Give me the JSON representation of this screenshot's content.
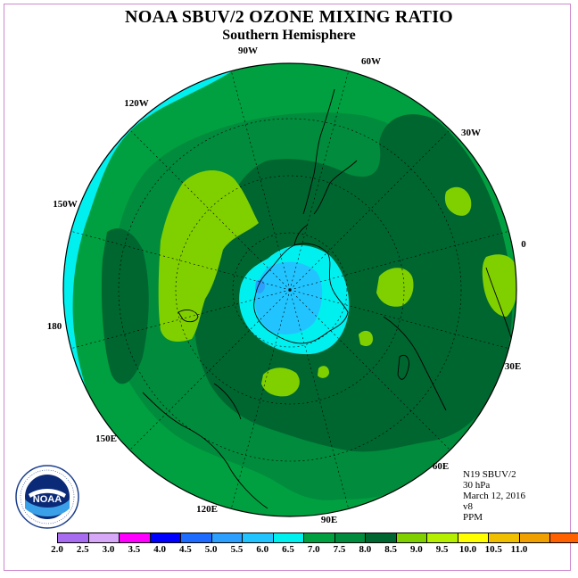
{
  "title": "NOAA SBUV/2 OZONE MIXING RATIO",
  "subtitle": "Southern Hemisphere",
  "longitude_labels": [
    {
      "key": "90w",
      "text": "90W"
    },
    {
      "key": "60w",
      "text": "60W"
    },
    {
      "key": "30w",
      "text": "30W"
    },
    {
      "key": "0",
      "text": "0"
    },
    {
      "key": "30e",
      "text": "30E"
    },
    {
      "key": "60e",
      "text": "60E"
    },
    {
      "key": "90e",
      "text": "90E"
    },
    {
      "key": "120e",
      "text": "120E"
    },
    {
      "key": "150e",
      "text": "150E"
    },
    {
      "key": "180",
      "text": "180"
    },
    {
      "key": "150w",
      "text": "150W"
    },
    {
      "key": "120w",
      "text": "120W"
    }
  ],
  "info": {
    "instrument": "N19 SBUV/2",
    "level": "30 hPa",
    "date": "March 12, 2016",
    "version": "v8",
    "units": "PPM"
  },
  "logo": {
    "text": "NOAA",
    "icon": "noaa-logo-icon"
  },
  "colorbar": {
    "ticks": [
      "2.0",
      "2.5",
      "3.0",
      "3.5",
      "4.0",
      "4.5",
      "5.0",
      "5.5",
      "6.0",
      "6.5",
      "7.0",
      "7.5",
      "8.0",
      "8.5",
      "9.0",
      "9.5",
      "10.0",
      "10.5",
      "11.0"
    ],
    "colors": [
      "#a86cf0",
      "#d8a8f8",
      "#ff00ff",
      "#0000ff",
      "#1e6cff",
      "#2da0ff",
      "#22c4ff",
      "#00f0f0",
      "#00a040",
      "#008c3c",
      "#006630",
      "#80d000",
      "#b4f000",
      "#ffff00",
      "#f0c000",
      "#f0a000",
      "#ff6000",
      "#ff0000",
      "#8b5a3c"
    ]
  },
  "colors": {
    "c55": "#00f0f0",
    "c60": "#00a040",
    "c65": "#008c3c",
    "c70": "#006630",
    "c75": "#80d000",
    "c80": "#b4f000",
    "c50": "#22c4ff",
    "c45": "#2da0ff"
  }
}
